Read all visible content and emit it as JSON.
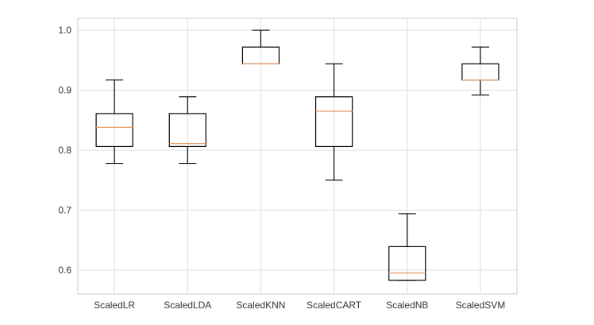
{
  "chart_data": {
    "type": "box",
    "title": "",
    "xlabel": "",
    "ylabel": "",
    "ylim": [
      0.56,
      1.02
    ],
    "yticks": [
      0.6,
      0.7,
      0.8,
      0.9,
      1.0
    ],
    "ytick_labels": [
      "0.6",
      "0.7",
      "0.8",
      "0.9",
      "1.0"
    ],
    "grid": true,
    "categories": [
      "ScaledLR",
      "ScaledLDA",
      "ScaledKNN",
      "ScaledCART",
      "ScaledNB",
      "ScaledSVM"
    ],
    "boxes": [
      {
        "name": "ScaledLR",
        "whisker_low": 0.778,
        "q1": 0.806,
        "median": 0.838,
        "q3": 0.861,
        "whisker_high": 0.917
      },
      {
        "name": "ScaledLDA",
        "whisker_low": 0.778,
        "q1": 0.806,
        "median": 0.811,
        "q3": 0.861,
        "whisker_high": 0.889
      },
      {
        "name": "ScaledKNN",
        "whisker_low": 0.944,
        "q1": 0.944,
        "median": 0.944,
        "q3": 0.972,
        "whisker_high": 1.0
      },
      {
        "name": "ScaledCART",
        "whisker_low": 0.75,
        "q1": 0.806,
        "median": 0.865,
        "q3": 0.889,
        "whisker_high": 0.944
      },
      {
        "name": "ScaledNB",
        "whisker_low": 0.583,
        "q1": 0.583,
        "median": 0.595,
        "q3": 0.639,
        "whisker_high": 0.694
      },
      {
        "name": "ScaledSVM",
        "whisker_low": 0.892,
        "q1": 0.917,
        "median": 0.917,
        "q3": 0.944,
        "whisker_high": 0.972
      }
    ],
    "colors": {
      "box": "#000000",
      "median": "#e8a070",
      "grid": "#dddddd",
      "frame": "#cccccc"
    }
  }
}
